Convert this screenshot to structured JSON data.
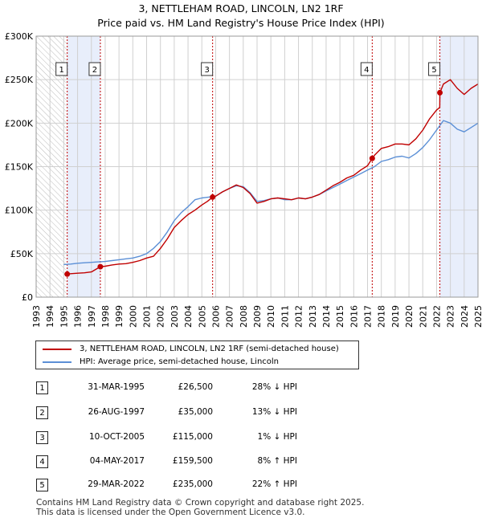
{
  "title_line1": "3, NETTLEHAM ROAD, LINCOLN, LN2 1RF",
  "title_line2": "Price paid vs. HM Land Registry's House Price Index (HPI)",
  "chart_data": {
    "type": "line",
    "title": "3, NETTLEHAM ROAD, LINCOLN, LN2 1RF — Price paid vs. HM Land Registry's House Price Index (HPI)",
    "xlim": [
      1993,
      2025
    ],
    "ylim": [
      0,
      300000
    ],
    "x_ticks": [
      1993,
      1994,
      1995,
      1996,
      1997,
      1998,
      1999,
      2000,
      2001,
      2002,
      2003,
      2004,
      2005,
      2006,
      2007,
      2008,
      2009,
      2010,
      2011,
      2012,
      2013,
      2014,
      2015,
      2016,
      2017,
      2018,
      2019,
      2020,
      2021,
      2022,
      2023,
      2024,
      2025
    ],
    "y_ticks": [
      0,
      50000,
      100000,
      150000,
      200000,
      250000,
      300000
    ],
    "y_tick_labels": [
      "£0",
      "£50K",
      "£100K",
      "£150K",
      "£200K",
      "£250K",
      "£300K"
    ],
    "grid": true,
    "hatched_region": [
      1993,
      1995.2
    ],
    "sale_regions": [
      [
        1995.25,
        1997.65
      ],
      [
        2022.24,
        2025
      ]
    ],
    "series": [
      {
        "name": "3, NETTLEHAM ROAD, LINCOLN, LN2 1RF (semi-detached house)",
        "color": "#c00000",
        "x": [
          1995.25,
          1995.5,
          1996,
          1996.5,
          1997,
          1997.64,
          1998,
          1998.5,
          1999,
          1999.5,
          2000,
          2000.5,
          2001,
          2001.5,
          2002,
          2002.5,
          2003,
          2003.5,
          2004,
          2004.5,
          2005,
          2005.4,
          2005.78,
          2006,
          2006.5,
          2007,
          2007.5,
          2008,
          2008.5,
          2009,
          2009.5,
          2010,
          2010.5,
          2011,
          2011.5,
          2012,
          2012.5,
          2013,
          2013.5,
          2014,
          2014.5,
          2015,
          2015.5,
          2016,
          2016.5,
          2017,
          2017.34,
          2017.5,
          2018,
          2018.5,
          2019,
          2019.5,
          2020,
          2020.5,
          2021,
          2021.5,
          2022,
          2022.23,
          2022.24,
          2022.5,
          2023,
          2023.5,
          2024,
          2024.5,
          2025
        ],
        "values": [
          26500,
          27000,
          27500,
          28000,
          29000,
          35000,
          35500,
          37000,
          38000,
          38500,
          40000,
          42000,
          45000,
          47000,
          56000,
          67000,
          80000,
          88000,
          95000,
          100000,
          106000,
          110000,
          115000,
          116000,
          121000,
          125000,
          129000,
          126000,
          119000,
          108000,
          110000,
          113000,
          114000,
          113000,
          112000,
          114000,
          113000,
          115000,
          118000,
          123000,
          128000,
          132000,
          137000,
          140000,
          146000,
          151000,
          159500,
          163000,
          171000,
          173000,
          176000,
          176000,
          175000,
          182000,
          192000,
          205000,
          215000,
          218000,
          235000,
          245000,
          250000,
          240000,
          233000,
          240000,
          245000
        ]
      },
      {
        "name": "HPI: Average price, semi-detached house, Lincoln",
        "color": "#5b8fd6",
        "x": [
          1995,
          1995.5,
          1996,
          1996.5,
          1997,
          1997.5,
          1998,
          1998.5,
          1999,
          1999.5,
          2000,
          2000.5,
          2001,
          2001.5,
          2002,
          2002.5,
          2003,
          2003.5,
          2004,
          2004.5,
          2005,
          2005.5,
          2006,
          2006.5,
          2007,
          2007.5,
          2008,
          2008.5,
          2009,
          2009.5,
          2010,
          2010.5,
          2011,
          2011.5,
          2012,
          2012.5,
          2013,
          2013.5,
          2014,
          2014.5,
          2015,
          2015.5,
          2016,
          2016.5,
          2017,
          2017.5,
          2018,
          2018.5,
          2019,
          2019.5,
          2020,
          2020.5,
          2021,
          2021.5,
          2022,
          2022.5,
          2023,
          2023.5,
          2024,
          2024.5,
          2025
        ],
        "values": [
          37500,
          38000,
          39000,
          39500,
          40000,
          40500,
          41000,
          42000,
          43000,
          44000,
          45000,
          47000,
          50000,
          56000,
          64000,
          75000,
          88000,
          97000,
          104000,
          112000,
          114000,
          115000,
          116000,
          121000,
          125000,
          128000,
          127000,
          120000,
          110000,
          111000,
          113000,
          114000,
          112000,
          112000,
          114000,
          113000,
          115000,
          118000,
          122000,
          126000,
          130000,
          134000,
          138000,
          142000,
          146000,
          150000,
          156000,
          158000,
          161000,
          162000,
          160000,
          165000,
          172000,
          181000,
          192000,
          203000,
          200000,
          193000,
          190000,
          195000,
          200000
        ]
      }
    ],
    "markers": [
      {
        "label": "1",
        "x": 1995.25,
        "y": 26500
      },
      {
        "label": "2",
        "x": 1997.65,
        "y": 35000
      },
      {
        "label": "3",
        "x": 2005.78,
        "y": 115000
      },
      {
        "label": "4",
        "x": 2017.34,
        "y": 159500
      },
      {
        "label": "5",
        "x": 2022.24,
        "y": 235000
      }
    ]
  },
  "legend": {
    "red_label": "3, NETTLEHAM ROAD, LINCOLN, LN2 1RF (semi-detached house)",
    "blue_label": "HPI: Average price, semi-detached house, Lincoln"
  },
  "colors": {
    "red": "#c00000",
    "blue": "#5b8fd6",
    "grid": "#d0d0d0",
    "shade": "#e8eefb",
    "hatch": "#bbbbbb"
  },
  "transactions": [
    {
      "num": "1",
      "date": "31-MAR-1995",
      "price": "£26,500",
      "hpi": "28% ↓ HPI"
    },
    {
      "num": "2",
      "date": "26-AUG-1997",
      "price": "£35,000",
      "hpi": "13% ↓ HPI"
    },
    {
      "num": "3",
      "date": "10-OCT-2005",
      "price": "£115,000",
      "hpi": "1% ↓ HPI"
    },
    {
      "num": "4",
      "date": "04-MAY-2017",
      "price": "£159,500",
      "hpi": "8% ↑ HPI"
    },
    {
      "num": "5",
      "date": "29-MAR-2022",
      "price": "£235,000",
      "hpi": "22% ↑ HPI"
    }
  ],
  "footer": {
    "line1": "Contains HM Land Registry data © Crown copyright and database right 2025.",
    "line2": "This data is licensed under the Open Government Licence v3.0."
  }
}
